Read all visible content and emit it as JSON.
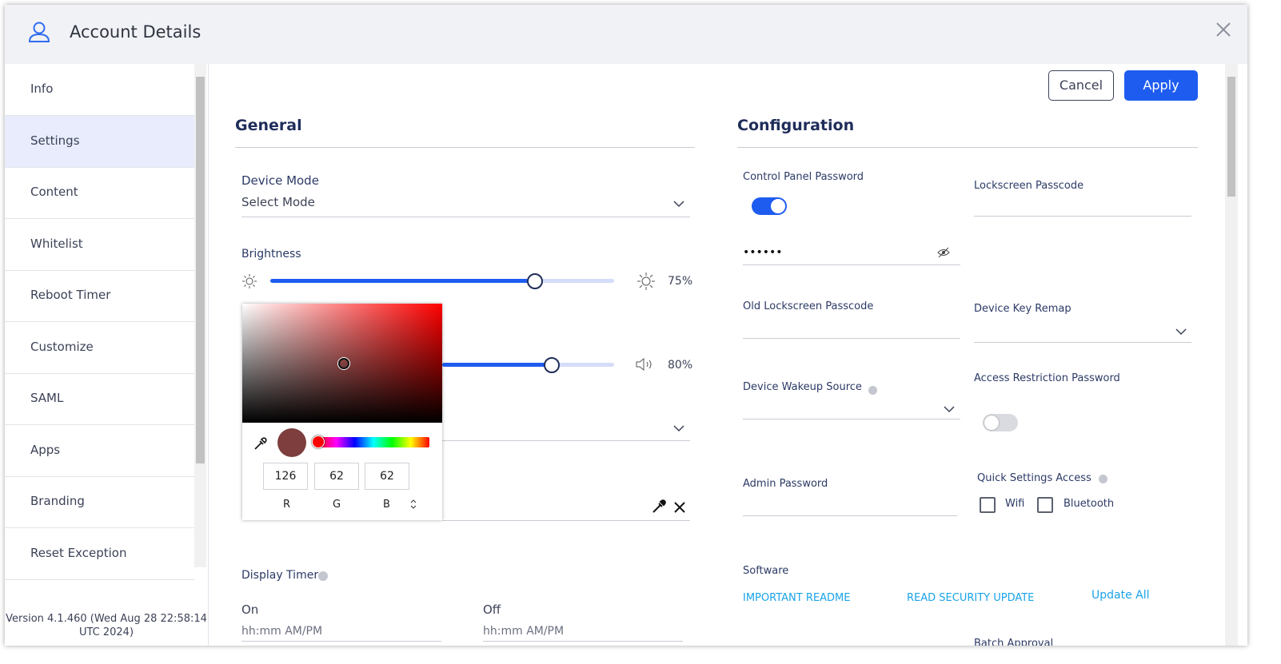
{
  "header": {
    "title": "Account Details"
  },
  "nav": {
    "items": [
      "Info",
      "Settings",
      "Content",
      "Whitelist",
      "Reboot Timer",
      "Customize",
      "SAML",
      "Apps",
      "Branding",
      "Reset Exception"
    ],
    "version": "Version 4.1.460 (Wed Aug 28 22:58:14 UTC 2024)"
  },
  "actions": {
    "cancel": "Cancel",
    "apply": "Apply"
  },
  "general": {
    "title": "General",
    "device_mode_label": "Device Mode",
    "device_mode_value": "Select Mode",
    "brightness_label": "Brightness",
    "brightness_value": "75%",
    "volume_value": "80%",
    "display_timer_label": "Display Timer",
    "on_label": "On",
    "off_label": "Off",
    "on_placeholder": "hh:mm AM/PM",
    "off_placeholder": "hh:mm AM/PM"
  },
  "color_picker": {
    "r": "126",
    "g": "62",
    "b": "62",
    "r_label": "R",
    "g_label": "G",
    "b_label": "B"
  },
  "configuration": {
    "title": "Configuration",
    "control_panel_password": "Control Panel Password",
    "password_mask": "••••••",
    "lockscreen_passcode": "Lockscreen Passcode",
    "old_lockscreen_passcode": "Old Lockscreen Passcode",
    "device_key_remap": "Device Key Remap",
    "device_wakeup_source": "Device Wakeup Source",
    "access_restriction_password": "Access Restriction Password",
    "admin_password": "Admin Password",
    "quick_settings_access": "Quick Settings Access",
    "wifi": "Wifi",
    "bluetooth": "Bluetooth",
    "software": "Software",
    "important_readme": "IMPORTANT README",
    "read_security_update": "READ SECURITY UPDATE",
    "update_all": "Update All",
    "batch_approval": "Batch Approval"
  }
}
